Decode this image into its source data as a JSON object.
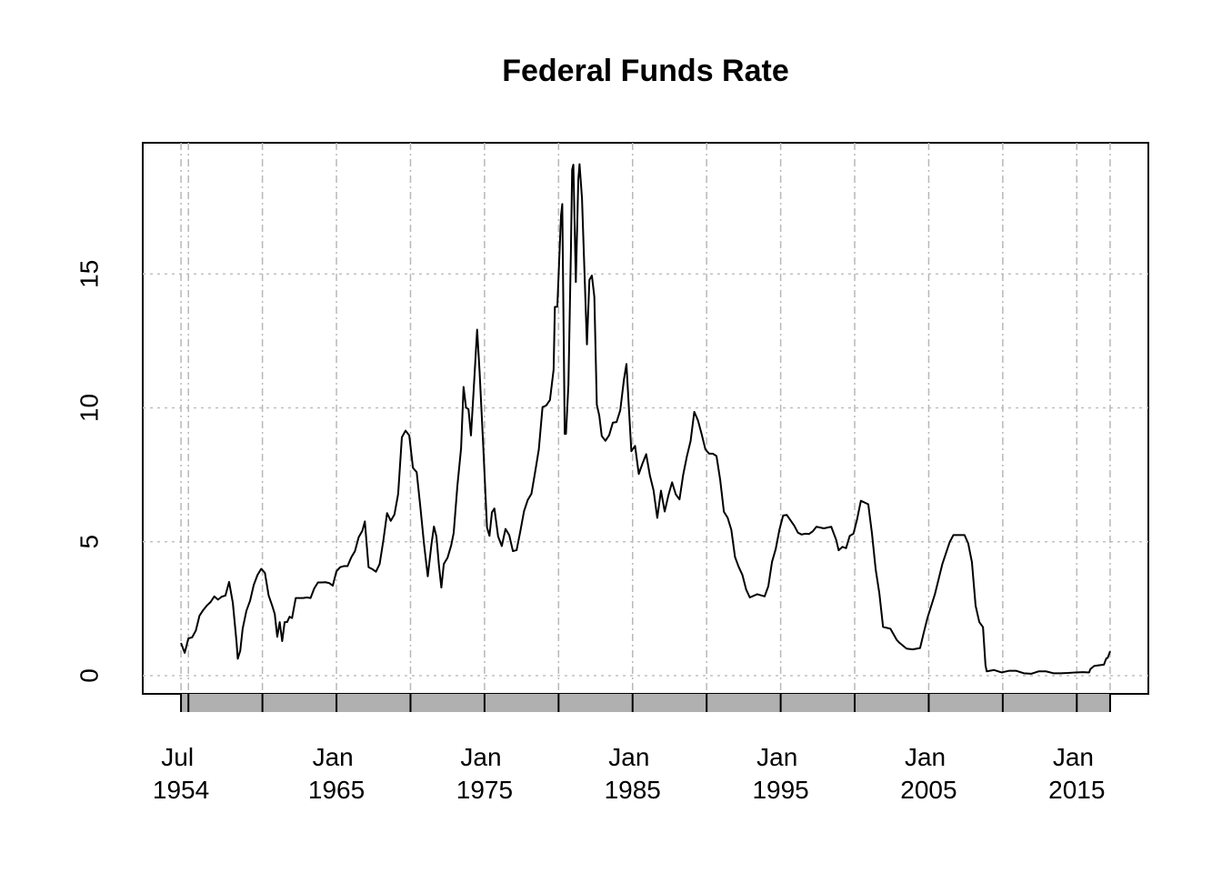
{
  "chart_data": {
    "type": "line",
    "title": "Federal Funds Rate",
    "x": [
      "1954-07",
      "1954-10",
      "1955-01",
      "1955-04",
      "1955-07",
      "1955-10",
      "1956-01",
      "1956-04",
      "1956-07",
      "1956-10",
      "1957-01",
      "1957-04",
      "1957-07",
      "1957-10",
      "1958-01",
      "1958-04",
      "1958-05",
      "1958-07",
      "1958-09",
      "1958-12",
      "1959-03",
      "1959-06",
      "1959-09",
      "1959-12",
      "1960-03",
      "1960-06",
      "1960-09",
      "1960-11",
      "1961-01",
      "1961-03",
      "1961-05",
      "1961-07",
      "1961-09",
      "1961-11",
      "1962-01",
      "1962-04",
      "1962-07",
      "1962-10",
      "1963-01",
      "1963-04",
      "1963-07",
      "1963-10",
      "1964-01",
      "1964-04",
      "1964-07",
      "1964-10",
      "1965-01",
      "1965-04",
      "1965-07",
      "1965-10",
      "1966-01",
      "1966-04",
      "1966-07",
      "1966-10",
      "1966-12",
      "1967-03",
      "1967-06",
      "1967-09",
      "1967-12",
      "1968-03",
      "1968-06",
      "1968-09",
      "1968-12",
      "1969-03",
      "1969-06",
      "1969-09",
      "1969-12",
      "1970-03",
      "1970-06",
      "1970-09",
      "1970-12",
      "1971-03",
      "1971-06",
      "1971-08",
      "1971-10",
      "1971-12",
      "1972-02",
      "1972-04",
      "1972-07",
      "1972-10",
      "1972-12",
      "1973-03",
      "1973-06",
      "1973-08",
      "1973-10",
      "1973-12",
      "1974-02",
      "1974-04",
      "1974-07",
      "1974-09",
      "1974-12",
      "1975-03",
      "1975-05",
      "1975-07",
      "1975-09",
      "1975-12",
      "1976-03",
      "1976-06",
      "1976-09",
      "1976-12",
      "1977-03",
      "1977-06",
      "1977-09",
      "1977-12",
      "1978-03",
      "1978-06",
      "1978-09",
      "1978-12",
      "1979-03",
      "1979-06",
      "1979-09",
      "1979-10",
      "1979-12",
      "1980-03",
      "1980-04",
      "1980-06",
      "1980-07",
      "1980-09",
      "1980-11",
      "1980-12",
      "1981-01",
      "1981-03",
      "1981-05",
      "1981-06",
      "1981-08",
      "1981-10",
      "1981-12",
      "1982-02",
      "1982-04",
      "1982-06",
      "1982-08",
      "1982-10",
      "1982-12",
      "1983-03",
      "1983-06",
      "1983-09",
      "1983-12",
      "1984-03",
      "1984-06",
      "1984-08",
      "1984-10",
      "1984-12",
      "1985-03",
      "1985-06",
      "1985-09",
      "1985-12",
      "1986-03",
      "1986-06",
      "1986-09",
      "1986-12",
      "1987-03",
      "1987-06",
      "1987-09",
      "1987-12",
      "1988-03",
      "1988-06",
      "1988-09",
      "1988-12",
      "1989-03",
      "1989-06",
      "1989-09",
      "1989-12",
      "1990-03",
      "1990-06",
      "1990-09",
      "1990-12",
      "1991-03",
      "1991-06",
      "1991-09",
      "1991-12",
      "1992-03",
      "1992-06",
      "1992-09",
      "1992-12",
      "1993-06",
      "1993-12",
      "1994-03",
      "1994-06",
      "1994-09",
      "1994-12",
      "1995-03",
      "1995-06",
      "1995-09",
      "1995-12",
      "1996-03",
      "1996-06",
      "1996-09",
      "1996-12",
      "1997-03",
      "1997-06",
      "1997-12",
      "1998-06",
      "1998-10",
      "1998-12",
      "1999-03",
      "1999-06",
      "1999-09",
      "1999-12",
      "2000-03",
      "2000-06",
      "2000-12",
      "2001-03",
      "2001-06",
      "2001-09",
      "2001-12",
      "2002-06",
      "2002-11",
      "2003-01",
      "2003-07",
      "2003-12",
      "2004-06",
      "2004-09",
      "2004-12",
      "2005-06",
      "2005-12",
      "2006-06",
      "2006-09",
      "2007-06",
      "2007-09",
      "2007-12",
      "2008-03",
      "2008-06",
      "2008-09",
      "2008-11",
      "2008-12",
      "2009-06",
      "2009-12",
      "2010-06",
      "2010-12",
      "2011-06",
      "2011-12",
      "2012-06",
      "2012-12",
      "2013-06",
      "2013-12",
      "2014-06",
      "2014-12",
      "2015-06",
      "2015-11",
      "2015-12",
      "2016-03",
      "2016-06",
      "2016-11",
      "2016-12",
      "2017-01",
      "2017-02",
      "2017-04"
    ],
    "series": [
      {
        "name": "Federal Funds Rate",
        "color": "#000000",
        "values": [
          1.22,
          0.85,
          1.39,
          1.43,
          1.68,
          2.24,
          2.45,
          2.62,
          2.75,
          2.96,
          2.84,
          2.95,
          2.99,
          3.5,
          2.72,
          1.26,
          0.63,
          0.93,
          1.76,
          2.42,
          2.8,
          3.39,
          3.76,
          3.99,
          3.84,
          3.0,
          2.6,
          2.3,
          1.45,
          2.0,
          1.29,
          2.0,
          2.0,
          2.2,
          2.15,
          2.9,
          2.9,
          2.9,
          2.92,
          2.9,
          3.26,
          3.48,
          3.48,
          3.49,
          3.46,
          3.36,
          3.9,
          4.05,
          4.09,
          4.09,
          4.42,
          4.65,
          5.17,
          5.41,
          5.76,
          4.05,
          3.98,
          3.88,
          4.17,
          5.05,
          6.07,
          5.78,
          6.02,
          6.79,
          8.9,
          9.15,
          8.97,
          7.76,
          7.6,
          6.29,
          4.9,
          3.71,
          4.91,
          5.57,
          5.2,
          4.14,
          3.29,
          4.17,
          4.4,
          4.87,
          5.33,
          7.09,
          8.49,
          10.78,
          10.01,
          9.95,
          8.97,
          10.51,
          12.92,
          11.34,
          8.53,
          5.54,
          5.22,
          6.1,
          6.24,
          5.2,
          4.84,
          5.48,
          5.25,
          4.65,
          4.69,
          5.39,
          6.14,
          6.56,
          6.79,
          7.6,
          8.45,
          10.03,
          10.09,
          10.29,
          11.43,
          13.77,
          13.78,
          17.19,
          17.61,
          9.03,
          9.03,
          10.87,
          15.85,
          18.9,
          19.08,
          14.7,
          18.52,
          19.1,
          17.82,
          15.08,
          12.37,
          14.78,
          14.94,
          14.15,
          10.12,
          9.71,
          8.95,
          8.77,
          8.98,
          9.45,
          9.47,
          9.91,
          11.06,
          11.64,
          9.99,
          8.38,
          8.58,
          7.53,
          7.92,
          8.27,
          7.48,
          6.92,
          5.89,
          6.91,
          6.13,
          6.73,
          7.22,
          6.77,
          6.58,
          7.5,
          8.19,
          8.76,
          9.85,
          9.53,
          9.01,
          8.45,
          8.29,
          8.29,
          8.2,
          7.31,
          6.12,
          5.9,
          5.45,
          4.43,
          4.06,
          3.76,
          3.22,
          2.92,
          3.04,
          2.96,
          3.34,
          4.25,
          4.73,
          5.45,
          5.98,
          6.0,
          5.8,
          5.6,
          5.34,
          5.27,
          5.3,
          5.29,
          5.39,
          5.56,
          5.5,
          5.56,
          5.07,
          4.68,
          4.81,
          4.76,
          5.22,
          5.3,
          5.85,
          6.53,
          6.4,
          5.31,
          3.97,
          3.07,
          1.82,
          1.75,
          1.34,
          1.24,
          1.01,
          0.98,
          1.03,
          1.61,
          2.16,
          3.04,
          4.16,
          4.99,
          5.25,
          5.25,
          4.94,
          4.24,
          2.61,
          2.0,
          1.81,
          0.39,
          0.16,
          0.21,
          0.12,
          0.18,
          0.18,
          0.09,
          0.07,
          0.16,
          0.16,
          0.09,
          0.09,
          0.1,
          0.12,
          0.13,
          0.12,
          0.24,
          0.36,
          0.38,
          0.41,
          0.54,
          0.65,
          0.66,
          0.91
        ]
      }
    ],
    "xlim": [
      "1951-12",
      "2019-11"
    ],
    "xticks": [
      {
        "value": "1954-07",
        "label": "Jul 1954"
      },
      {
        "value": "1965-01",
        "label": "Jan 1965"
      },
      {
        "value": "1975-01",
        "label": "Jan 1975"
      },
      {
        "value": "1985-01",
        "label": "Jan 1985"
      },
      {
        "value": "1995-01",
        "label": "Jan 1995"
      },
      {
        "value": "2005-01",
        "label": "Jan 2005"
      },
      {
        "value": "2015-01",
        "label": "Jan 2015"
      }
    ],
    "xminor_ticks": [
      "1955-01",
      "1960-01",
      "1970-01",
      "1980-01",
      "1990-01",
      "2000-01",
      "2010-01",
      "2017-04"
    ],
    "ylim": [
      -0.68,
      19.9
    ],
    "yticks": [
      0,
      5,
      10,
      15
    ],
    "grid": true
  }
}
